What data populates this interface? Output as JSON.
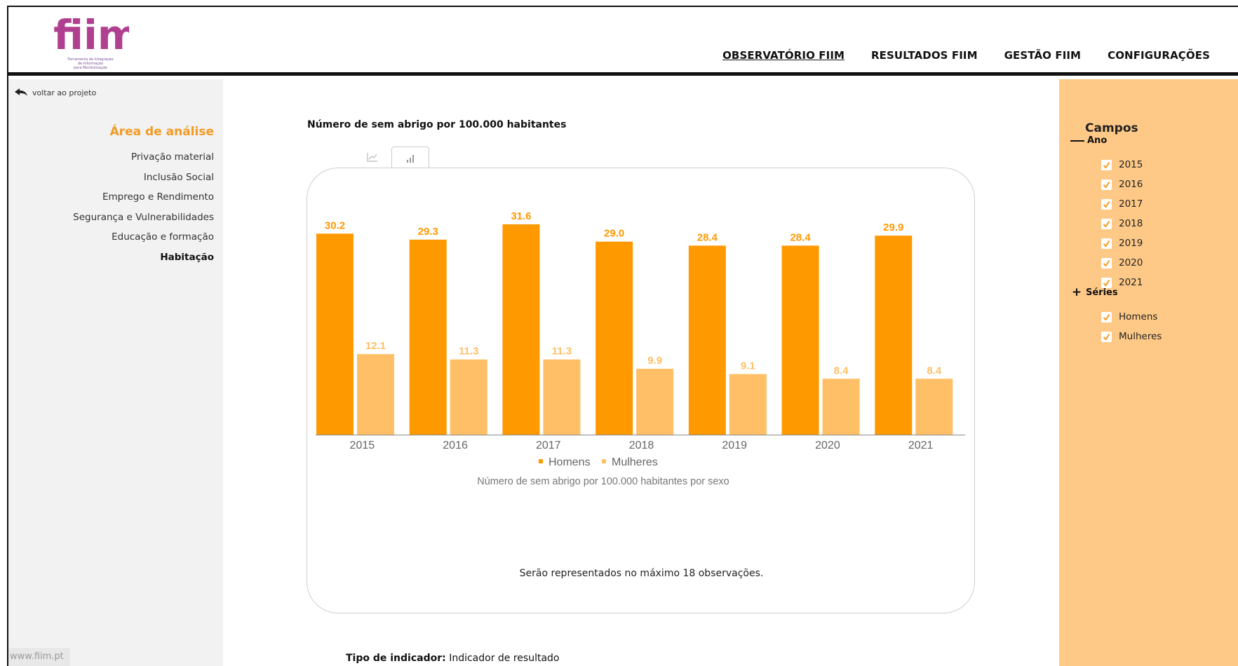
{
  "header": {
    "logo_text": "fiim",
    "logo_subtitle": [
      "Ferramenta de Integração",
      "de Informação",
      "para Monitorização"
    ],
    "nav": [
      {
        "label": "OBSERVATÓRIO FIIM",
        "active": true
      },
      {
        "label": "RESULTADOS FIIM",
        "active": false
      },
      {
        "label": "GESTÃO FIIM",
        "active": false
      },
      {
        "label": "CONFIGURAÇÕES",
        "active": false
      }
    ]
  },
  "sidebar": {
    "back_label": "voltar ao projeto",
    "area_title": "Área de análise",
    "items": [
      {
        "label": "Privação material",
        "active": false
      },
      {
        "label": "Inclusão Social",
        "active": false
      },
      {
        "label": "Emprego e Rendimento",
        "active": false
      },
      {
        "label": "Segurança e Vulnerabilidades",
        "active": false
      },
      {
        "label": "Educação e formação",
        "active": false
      },
      {
        "label": "Habitação",
        "active": true
      }
    ],
    "footer_url": "www.fiim.pt"
  },
  "main": {
    "indicator_title": "Número de sem abrigo por 100.000 habitantes",
    "tabs": [
      {
        "icon": "line-chart-icon",
        "active": false
      },
      {
        "icon": "bar-chart-icon",
        "active": true
      }
    ],
    "max_note": "Serão representados no máximo 18 observações.",
    "indicator_type_label": "Tipo de indicador:",
    "indicator_type_value": "Indicador de resultado"
  },
  "chart_data": {
    "type": "bar",
    "categories": [
      "2015",
      "2016",
      "2017",
      "2018",
      "2019",
      "2020",
      "2021"
    ],
    "series": [
      {
        "name": "Homens",
        "values": [
          30.2,
          29.3,
          31.6,
          29.0,
          28.4,
          28.4,
          29.9
        ],
        "color": "#ff9900"
      },
      {
        "name": "Mulheres",
        "values": [
          12.1,
          11.3,
          11.3,
          9.9,
          9.1,
          8.4,
          8.4
        ],
        "color": "#ffbf66"
      }
    ],
    "title": "Número de sem abrigo por 100.000 habitantes por sexo",
    "legend_position": "bottom",
    "grid": false,
    "ylim": [
      0,
      31.6
    ]
  },
  "fields": {
    "title": "Campos",
    "groups": [
      {
        "label": "Ano",
        "expanded": true,
        "items": [
          "2015",
          "2016",
          "2017",
          "2018",
          "2019",
          "2020",
          "2021"
        ]
      },
      {
        "label": "Séries",
        "expanded": false,
        "items": [
          "Homens",
          "Mulheres"
        ]
      }
    ]
  },
  "colors": {
    "accent": "#f39a22",
    "homens": "#ff9900",
    "mulheres": "#ffbf66",
    "fields_panel": "#fec987",
    "sidebar": "#f2f2f2"
  }
}
